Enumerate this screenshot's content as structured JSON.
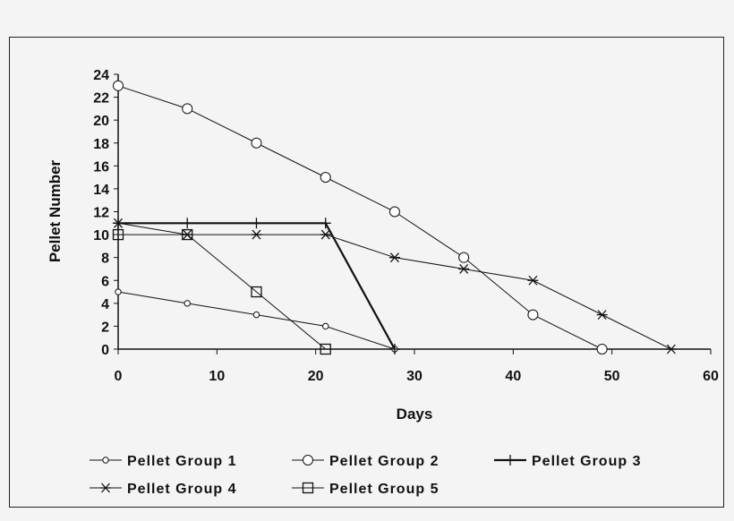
{
  "chart_data": {
    "type": "line",
    "xlabel": "Days",
    "ylabel": "Pellet Number",
    "xlim": [
      0,
      60
    ],
    "ylim": [
      0,
      24
    ],
    "xticks": [
      0,
      10,
      20,
      30,
      40,
      50,
      60
    ],
    "yticks": [
      0,
      2,
      4,
      6,
      8,
      10,
      12,
      14,
      16,
      18,
      20,
      22,
      24
    ],
    "grid": false,
    "legend_position": "bottom",
    "series": [
      {
        "name": "Pellet Group 1",
        "marker": "small-circle",
        "x": [
          0,
          7,
          14,
          21,
          28
        ],
        "y": [
          5,
          4,
          3,
          2,
          0
        ]
      },
      {
        "name": "Pellet Group 2",
        "marker": "circle",
        "x": [
          0,
          7,
          14,
          21,
          28,
          35,
          42,
          49
        ],
        "y": [
          23,
          21,
          18,
          15,
          12,
          8,
          3,
          0
        ]
      },
      {
        "name": "Pellet Group 3",
        "marker": "plus",
        "x": [
          0,
          7,
          14,
          21,
          28
        ],
        "y": [
          11,
          11,
          11,
          11,
          0
        ]
      },
      {
        "name": "Pellet Group 4",
        "marker": "asterisk",
        "x": [
          0,
          7,
          14,
          21,
          28,
          35,
          42,
          49,
          56
        ],
        "y": [
          11,
          10,
          10,
          10,
          8,
          7,
          6,
          3,
          0
        ]
      },
      {
        "name": "Pellet Group 5",
        "marker": "square",
        "x": [
          0,
          7,
          14,
          21
        ],
        "y": [
          10,
          10,
          5,
          0
        ]
      }
    ]
  }
}
